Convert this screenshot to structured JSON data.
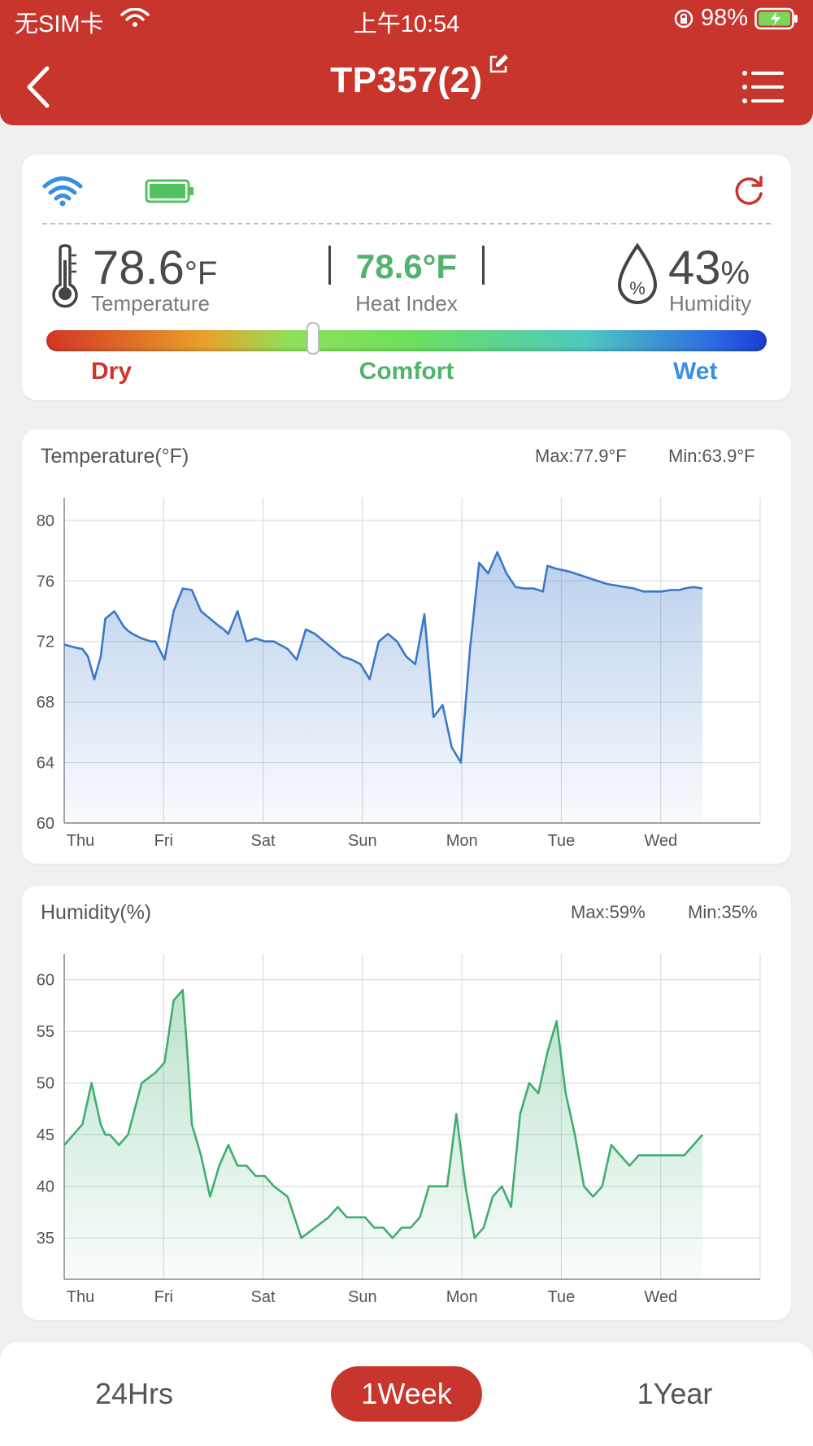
{
  "status_bar": {
    "carrier": "无SIM卡",
    "time": "上午10:54",
    "battery": "98%"
  },
  "header": {
    "title": "TP357(2)"
  },
  "current": {
    "temperature_value": "78.6",
    "temperature_unit": "°F",
    "temperature_label": "Temperature",
    "heat_index_value": "78.6°F",
    "heat_index_label": "Heat Index",
    "humidity_value": "43",
    "humidity_unit": "%",
    "humidity_label": "Humidity",
    "humidity_icon_symbol": "%",
    "comfort_position_percent": 37
  },
  "gauge": {
    "dry_label": "Dry",
    "comfort_label": "Comfort",
    "wet_label": "Wet"
  },
  "colors": {
    "brand": "#c8352d",
    "temp_line": "#3a78c8",
    "hum_line": "#3fae70",
    "comfort": "#52b36c",
    "wet": "#3a8fe0"
  },
  "icons": {
    "back": "chevron-left-icon",
    "menu": "list-icon",
    "edit": "edit-icon",
    "wifi": "wifi-icon",
    "battery": "battery-icon",
    "refresh": "refresh-icon",
    "thermometer": "thermometer-icon",
    "humidity": "water-drop-icon"
  },
  "tabs": {
    "day": "24Hrs",
    "week": "1Week",
    "year": "1Year",
    "selected": "1Week"
  },
  "chart_data": [
    {
      "type": "area",
      "title": "Temperature(°F)",
      "max_label": "Max:77.9°F",
      "min_label": "Min:63.9°F",
      "categories": [
        "Thu",
        "Fri",
        "Sat",
        "Sun",
        "Mon",
        "Tue",
        "Wed"
      ],
      "ylim": [
        60,
        81.5
      ],
      "yticks": [
        60,
        64,
        68,
        72,
        76,
        80
      ],
      "xlim": [
        0,
        7
      ],
      "grid": true,
      "series": [
        {
          "x": [
            0,
            0.12,
            0.2,
            0.26,
            0.33,
            0.4,
            0.45,
            0.55,
            0.65,
            0.7,
            0.75,
            0.85,
            0.95,
            1.0,
            1.1,
            1.2,
            1.3,
            1.4,
            1.5,
            1.6,
            1.7,
            1.75,
            1.8,
            1.9,
            2.0,
            2.1,
            2.2,
            2.3,
            2.45,
            2.55,
            2.65,
            2.75,
            2.85,
            2.95,
            3.05,
            3.15,
            3.25,
            3.35,
            3.45,
            3.55,
            3.65,
            3.75,
            3.85,
            3.95,
            4.05,
            4.15,
            4.25,
            4.35,
            4.45,
            4.55,
            4.65,
            4.75,
            4.85,
            4.95,
            5.05,
            5.15,
            5.25,
            5.3,
            5.35,
            5.4,
            5.48,
            5.55,
            5.6,
            5.65,
            5.7,
            5.75,
            5.8,
            5.85,
            5.9,
            5.95,
            6.05,
            6.15,
            6.25,
            6.3,
            6.35,
            6.45,
            6.55,
            6.65,
            6.75,
            6.8,
            6.9,
            7.0
          ],
          "y": [
            71.8,
            71.6,
            71.5,
            71.0,
            69.5,
            71.0,
            73.5,
            74.0,
            73.0,
            72.7,
            72.5,
            72.2,
            72.0,
            72.0,
            70.8,
            74.0,
            75.5,
            75.4,
            74.0,
            73.5,
            73.0,
            72.8,
            72.5,
            74.0,
            72.0,
            72.2,
            72.0,
            72.0,
            71.5,
            70.8,
            72.8,
            72.5,
            72.0,
            71.5,
            71.0,
            70.8,
            70.5,
            69.5,
            72.0,
            72.5,
            72.0,
            71.0,
            70.5,
            73.8,
            67.0,
            67.8,
            65.0,
            64.0,
            71.5,
            77.2,
            76.5,
            77.9,
            76.5,
            75.6,
            75.5,
            75.5,
            75.3,
            77.0,
            76.9,
            76.8,
            76.7,
            76.6,
            76.5,
            76.4,
            76.3,
            76.2,
            76.1,
            76.0,
            75.9,
            75.8,
            75.7,
            75.6,
            75.5,
            75.4,
            75.3,
            75.3,
            75.3,
            75.4,
            75.4,
            75.5,
            75.6,
            75.5
          ]
        }
      ]
    },
    {
      "type": "area",
      "title": "Humidity(%)",
      "max_label": "Max:59%",
      "min_label": "Min:35%",
      "categories": [
        "Thu",
        "Fri",
        "Sat",
        "Sun",
        "Mon",
        "Tue",
        "Wed"
      ],
      "ylim": [
        31,
        62.5
      ],
      "yticks": [
        35,
        40,
        45,
        50,
        55,
        60
      ],
      "xlim": [
        0,
        7
      ],
      "grid": true,
      "series": [
        {
          "x": [
            0,
            0.1,
            0.2,
            0.3,
            0.4,
            0.45,
            0.5,
            0.6,
            0.7,
            0.85,
            1.0,
            1.1,
            1.2,
            1.3,
            1.35,
            1.4,
            1.5,
            1.6,
            1.7,
            1.8,
            1.9,
            2.0,
            2.1,
            2.2,
            2.3,
            2.45,
            2.6,
            2.75,
            2.9,
            3.0,
            3.1,
            3.2,
            3.3,
            3.4,
            3.5,
            3.6,
            3.7,
            3.8,
            3.9,
            4.0,
            4.1,
            4.2,
            4.3,
            4.4,
            4.5,
            4.6,
            4.7,
            4.8,
            4.9,
            5.0,
            5.1,
            5.2,
            5.3,
            5.4,
            5.5,
            5.6,
            5.7,
            5.8,
            5.9,
            6.0,
            6.1,
            6.2,
            6.3,
            6.4,
            6.5,
            6.6,
            6.7,
            6.8,
            6.9,
            7.0
          ],
          "y": [
            44,
            45,
            46,
            50,
            46,
            45,
            45,
            44,
            45,
            50,
            51,
            52,
            58,
            59,
            53,
            46,
            43,
            39,
            42,
            44,
            42,
            42,
            41,
            41,
            40,
            39,
            35,
            36,
            37,
            38,
            37,
            37,
            37,
            36,
            36,
            35,
            36,
            36,
            37,
            40,
            40,
            40,
            47,
            40,
            35,
            36,
            39,
            40,
            38,
            47,
            50,
            49,
            53,
            56,
            49,
            45,
            40,
            39,
            40,
            44,
            43,
            42,
            43,
            43,
            43,
            43,
            43,
            43,
            44,
            45
          ]
        }
      ]
    }
  ]
}
